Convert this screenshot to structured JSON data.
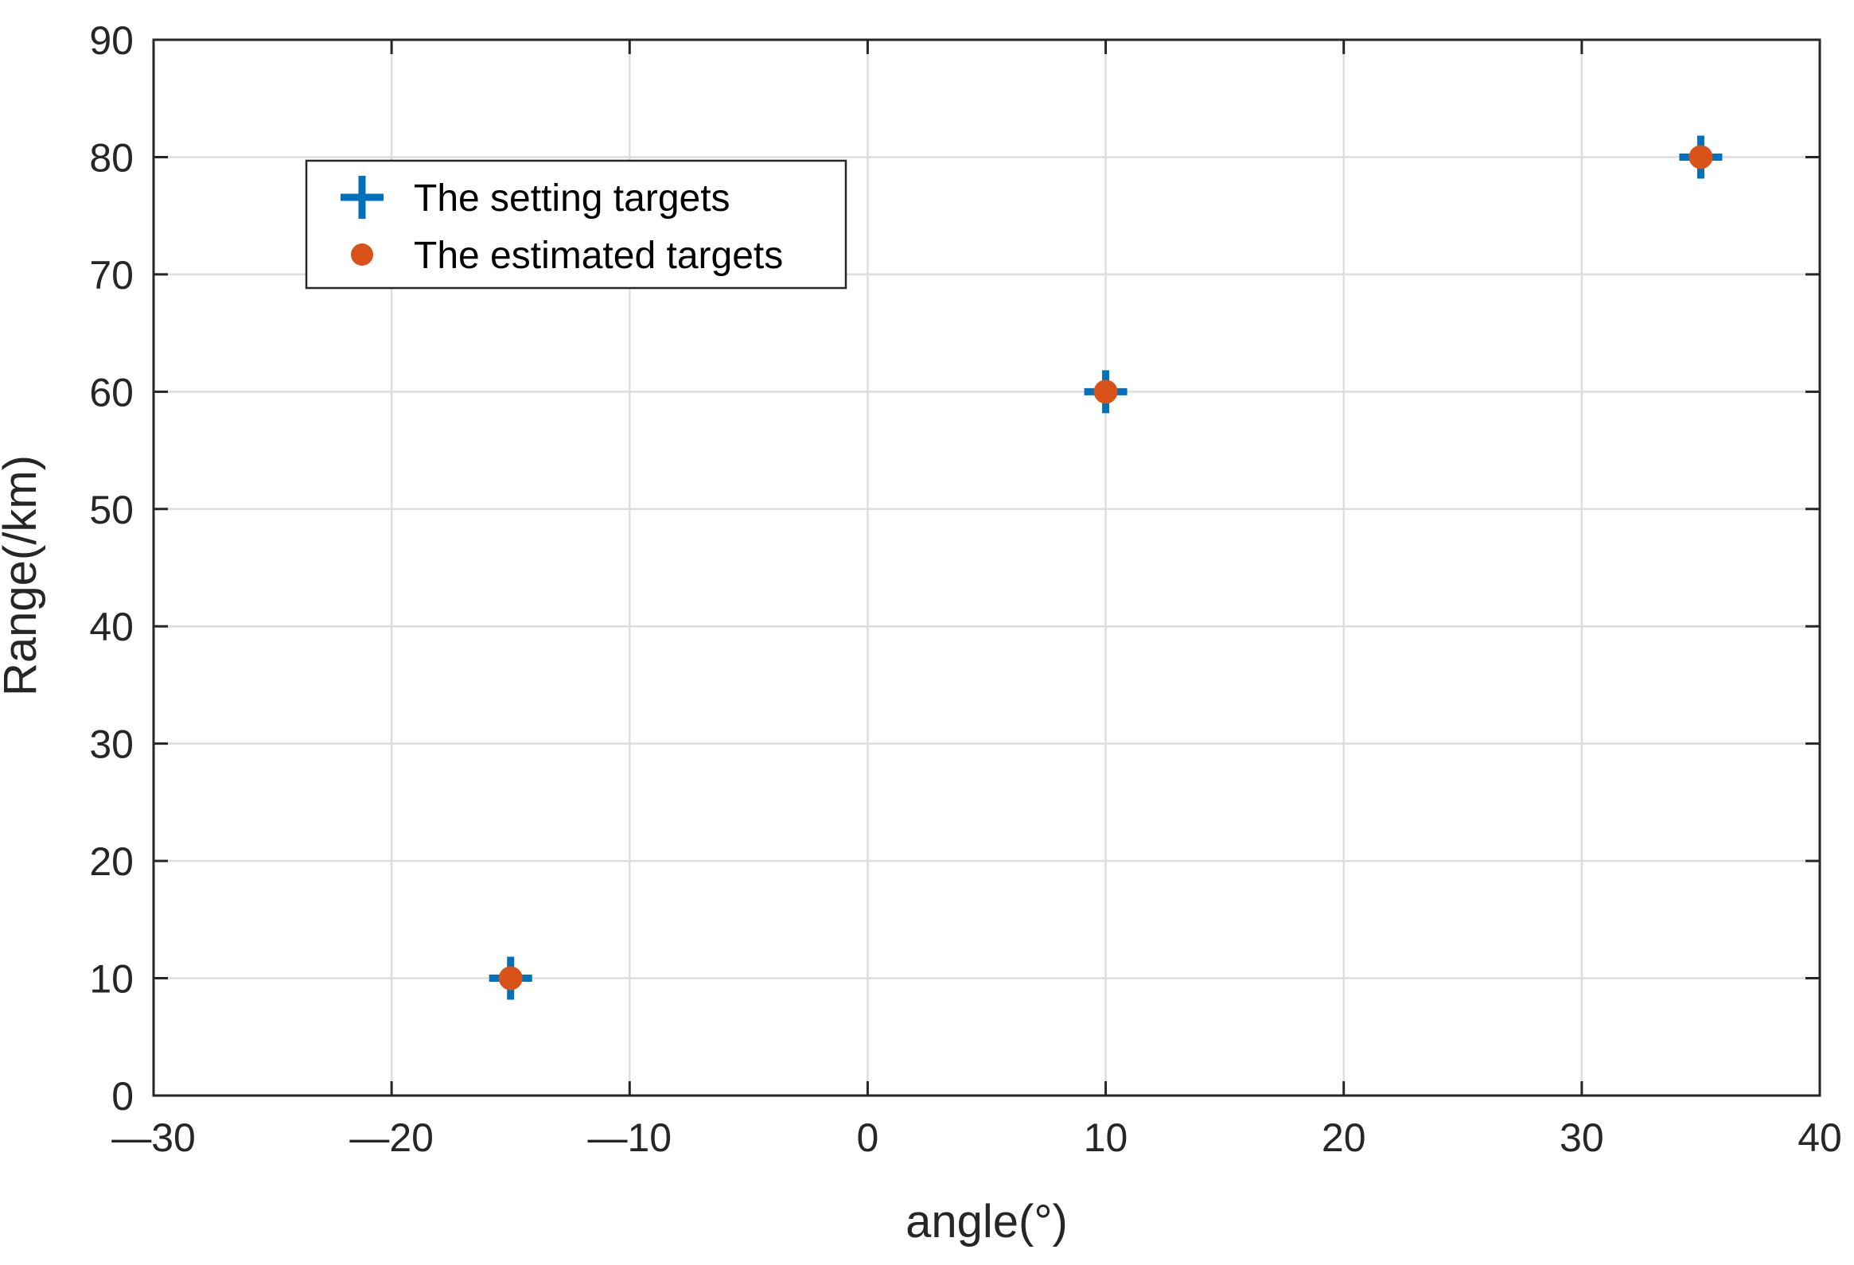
{
  "chart_data": {
    "type": "scatter",
    "xlabel": "angle(°)",
    "ylabel": "Range(/km)",
    "xlim": [
      -30,
      40
    ],
    "ylim": [
      0,
      90
    ],
    "xticks": [
      -30,
      -20,
      -10,
      0,
      10,
      20,
      30,
      40
    ],
    "xtick_labels": [
      "—30",
      "—20",
      "—10",
      "0",
      "10",
      "20",
      "30",
      "40"
    ],
    "yticks": [
      0,
      10,
      20,
      30,
      40,
      50,
      60,
      70,
      80,
      90
    ],
    "ytick_labels": [
      "0",
      "10",
      "20",
      "30",
      "40",
      "50",
      "60",
      "70",
      "80",
      "90"
    ],
    "grid": true,
    "legend_position": "top-left",
    "series": [
      {
        "name": "The setting targets",
        "marker": "plus",
        "color": "#0072BD",
        "points": [
          {
            "x": -15,
            "y": 10
          },
          {
            "x": 10,
            "y": 60
          },
          {
            "x": 35,
            "y": 80
          }
        ]
      },
      {
        "name": "The estimated targets",
        "marker": "circle",
        "color": "#D95319",
        "points": [
          {
            "x": -15,
            "y": 10
          },
          {
            "x": 10,
            "y": 60
          },
          {
            "x": 35,
            "y": 80
          }
        ]
      }
    ]
  }
}
